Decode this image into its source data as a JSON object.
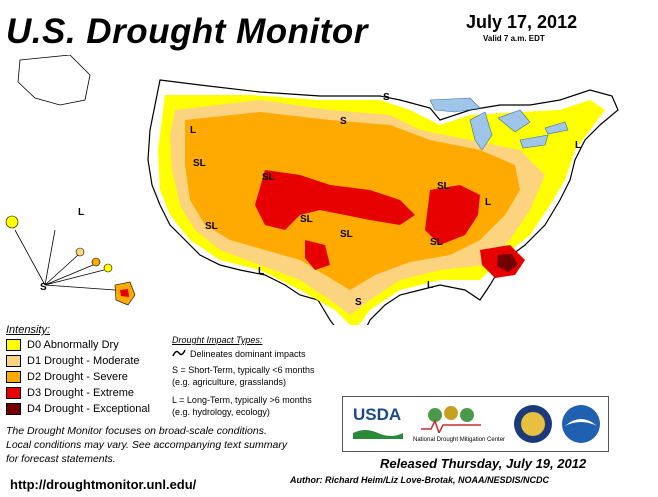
{
  "header": {
    "title": "U.S. Drought Monitor",
    "date": "July 17, 2012",
    "valid": "Valid 7 a.m. EDT"
  },
  "colors": {
    "D0": "#ffff00",
    "D1": "#fcd37f",
    "D2": "#ffaa00",
    "D3": "#e60000",
    "D4": "#730000",
    "land": "#ffffff",
    "water": "#9fc5e8",
    "boundary": "#000000"
  },
  "map": {
    "impact_labels": [
      "S",
      "L",
      "SL",
      "SL",
      "SL",
      "SL",
      "SL",
      "SL",
      "SL",
      "L",
      "L",
      "S",
      "S",
      "L",
      "L",
      "S",
      "L"
    ]
  },
  "legend": {
    "title": "Intensity:",
    "items": [
      {
        "code": "D0",
        "label": "D0 Abnormally Dry"
      },
      {
        "code": "D1",
        "label": "D1 Drought - Moderate"
      },
      {
        "code": "D2",
        "label": "D2 Drought - Severe"
      },
      {
        "code": "D3",
        "label": "D3 Drought - Extreme"
      },
      {
        "code": "D4",
        "label": "D4 Drought - Exceptional"
      }
    ]
  },
  "impacts": {
    "title": "Drought Impact Types:",
    "delineates": "Delineates dominant impacts",
    "short_term": "S = Short-Term, typically <6 months",
    "short_term_eg": "(e.g. agriculture, grasslands)",
    "long_term": "L = Long-Term, typically >6 months",
    "long_term_eg": "(e.g. hydrology, ecology)"
  },
  "notes": [
    "The Drought Monitor focuses on broad-scale conditions.",
    "Local conditions may vary. See accompanying text summary",
    "for forecast statements."
  ],
  "logos": {
    "usda": "USDA",
    "ndmc": "National Drought Mitigation Center"
  },
  "footer": {
    "released": "Released Thursday, July 19, 2012",
    "author": "Author: Richard Heim/Liz Love-Brotak, NOAA/NESDIS/NCDC",
    "url": "http://droughtmonitor.unl.edu/"
  }
}
